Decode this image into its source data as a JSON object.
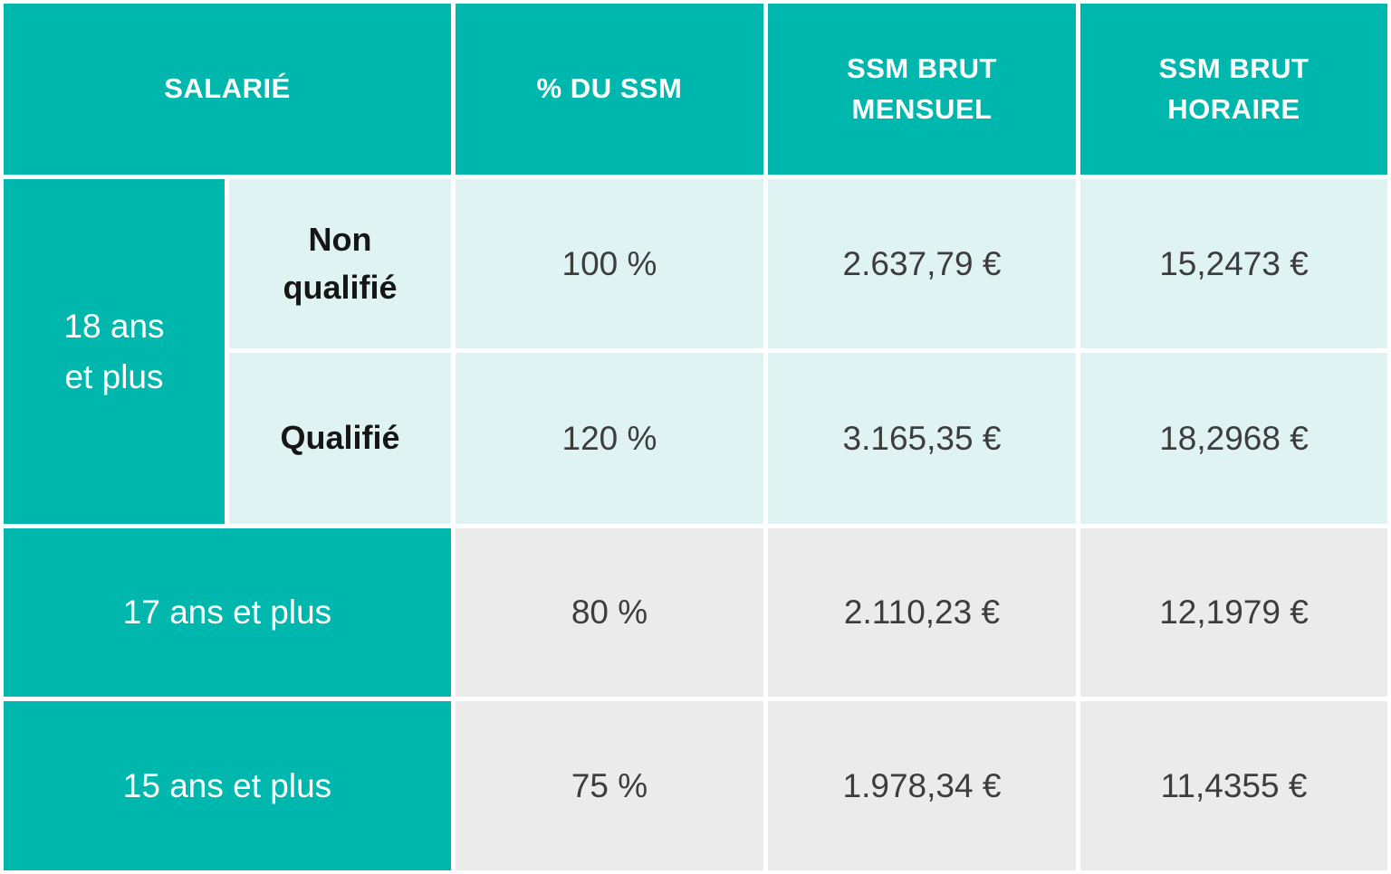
{
  "colors": {
    "teal": "#00b7ae",
    "light_teal": "#def3f2",
    "light_gray": "#ebebeb",
    "border_white": "#ffffff",
    "value_text": "#3d3d3d",
    "label_text": "#161616",
    "header_text": "#ffffff"
  },
  "table": {
    "header": {
      "salarie": "SALARIÉ",
      "pct_du_ssm": "% DU SSM",
      "ssm_brut_mensuel": "SSM BRUT\nMENSUEL",
      "ssm_brut_horaire": "SSM BRUT\nHORAIRE"
    },
    "rows": {
      "age18": {
        "label": "18 ans\net plus",
        "non_qualifie": {
          "label": "Non\nqualifié",
          "pct": "100 %",
          "mensuel": "2.637,79 €",
          "horaire": "15,2473 €"
        },
        "qualifie": {
          "label": "Qualifié",
          "pct": "120 %",
          "mensuel": "3.165,35 €",
          "horaire": "18,2968 €"
        }
      },
      "age17": {
        "label": "17 ans et plus",
        "pct": "80 %",
        "mensuel": "2.110,23 €",
        "horaire": "12,1979 €"
      },
      "age15": {
        "label": "15 ans et plus",
        "pct": "75 %",
        "mensuel": "1.978,34 €",
        "horaire": "11,4355 €"
      }
    }
  }
}
